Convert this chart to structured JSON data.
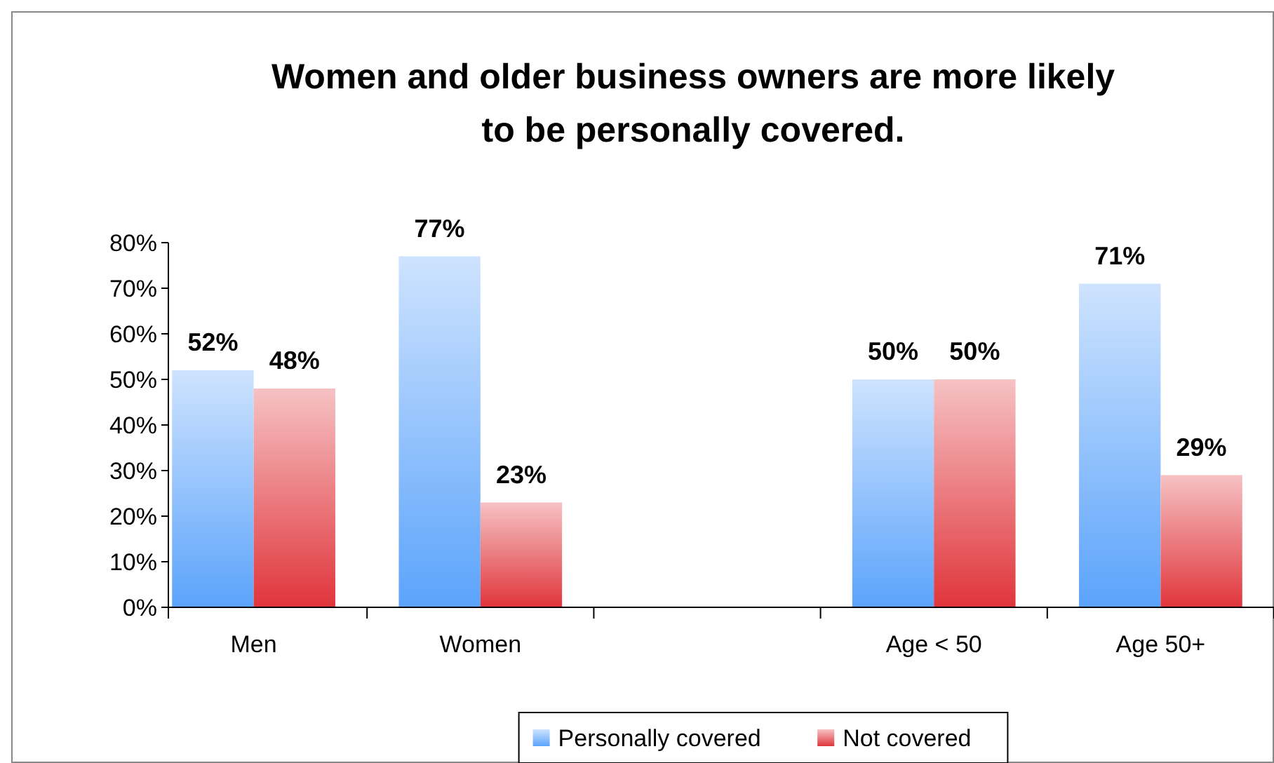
{
  "chart_data": {
    "type": "bar",
    "title": "Women and older business owners are more likely\nto be personally covered.",
    "categories": [
      "Men",
      "Women",
      null,
      "Age < 50",
      "Age 50+"
    ],
    "series": [
      {
        "name": "Personally covered",
        "color": "#5ba3fb",
        "values": [
          52,
          77,
          null,
          50,
          71
        ],
        "value_labels": [
          "52%",
          "77%",
          null,
          "50%",
          "71%"
        ]
      },
      {
        "name": "Not covered",
        "color": "#e0353b",
        "values": [
          48,
          23,
          null,
          50,
          29
        ],
        "value_labels": [
          "48%",
          "23%",
          null,
          "50%",
          "29%"
        ]
      }
    ],
    "ylim": [
      0,
      80
    ],
    "yticks": [
      {
        "value": 0,
        "label": "0%"
      },
      {
        "value": 10,
        "label": "10%"
      },
      {
        "value": 20,
        "label": "20%"
      },
      {
        "value": 30,
        "label": "30%"
      },
      {
        "value": 40,
        "label": "40%"
      },
      {
        "value": 50,
        "label": "50%"
      },
      {
        "value": 60,
        "label": "60%"
      },
      {
        "value": 70,
        "label": "70%"
      },
      {
        "value": 80,
        "label": "80%"
      }
    ],
    "grid": false,
    "legend": "bottom"
  }
}
